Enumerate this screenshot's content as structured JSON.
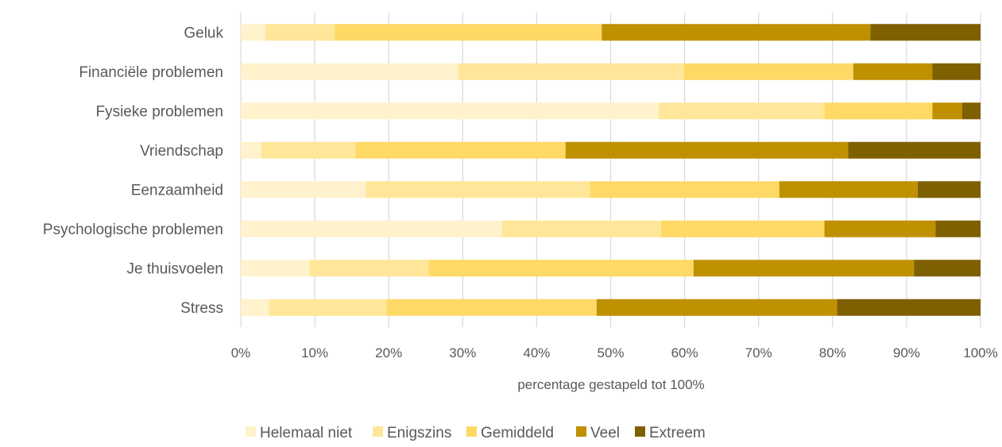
{
  "chart_data": {
    "type": "bar",
    "orientation": "horizontal",
    "stacked": "percent",
    "categories": [
      "Geluk",
      "Financiële problemen",
      "Fysieke problemen",
      "Vriendschap",
      "Eenzaamheid",
      "Psychologische problemen",
      "Je thuisvoelen",
      "Stress"
    ],
    "series": [
      {
        "name": "Helemaal niet",
        "color": "#FFF2CC",
        "values": [
          3.3,
          29.4,
          56.5,
          2.8,
          16.9,
          35.3,
          9.3,
          3.8
        ]
      },
      {
        "name": "Enigszins",
        "color": "#FFE699",
        "values": [
          9.4,
          30.5,
          22.4,
          12.7,
          30.3,
          21.5,
          16.1,
          15.9
        ]
      },
      {
        "name": "Gemiddeld",
        "color": "#FFD966",
        "values": [
          36.1,
          22.9,
          14.6,
          28.4,
          25.6,
          22.1,
          35.8,
          28.4
        ]
      },
      {
        "name": "Veel",
        "color": "#BF9000",
        "values": [
          36.3,
          10.7,
          4.0,
          38.2,
          18.7,
          15.0,
          29.8,
          32.5
        ]
      },
      {
        "name": "Extreem",
        "color": "#7F6000",
        "values": [
          14.9,
          6.5,
          2.5,
          17.9,
          8.5,
          6.1,
          9.0,
          19.4
        ]
      }
    ],
    "xlim": [
      0,
      100
    ],
    "xticks": [
      "0%",
      "10%",
      "20%",
      "30%",
      "40%",
      "50%",
      "60%",
      "70%",
      "80%",
      "90%",
      "100%"
    ],
    "xlabel": "percentage gestapeld tot 100%",
    "ylabel": "",
    "grid": "vertical",
    "legend_position": "bottom"
  }
}
